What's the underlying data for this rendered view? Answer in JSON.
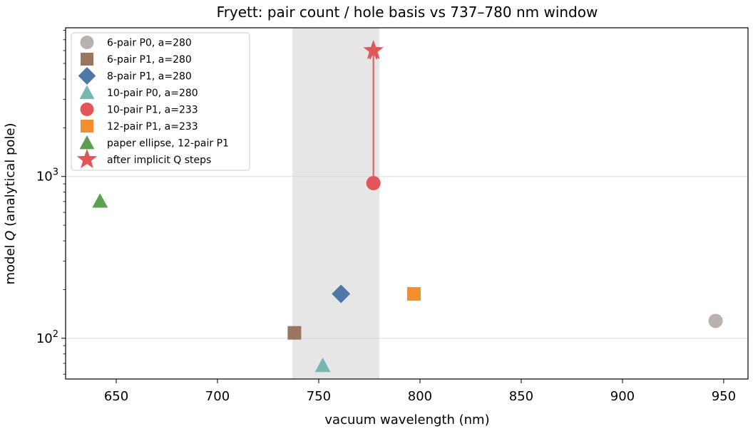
{
  "chart_data": {
    "type": "scatter",
    "title": "Fryett: pair count / hole basis vs 737–780 nm window",
    "xlabel": "vacuum wavelength (nm)",
    "ylabel_prefix": "model ",
    "ylabel_symbol": "Q",
    "ylabel_suffix": " (analytical pole)",
    "xlim": [
      625,
      962
    ],
    "ylim": [
      56,
      8300
    ],
    "y_scale": "log",
    "grid": "horizontal at y major ticks",
    "x_ticks": [
      650,
      700,
      750,
      800,
      850,
      900,
      950
    ],
    "y_ticks": [
      {
        "value": 100,
        "base": "10",
        "exp": "2"
      },
      {
        "value": 1000,
        "base": "10",
        "exp": "3"
      }
    ],
    "shaded_window": {
      "x_start": 737,
      "x_end": 780,
      "color": "#e6e6e6"
    },
    "legend_position": "upper-left",
    "series": [
      {
        "name": "6-pair P0, a=280",
        "marker": "circle",
        "color": "#bab0ac",
        "points": [
          {
            "x": 946,
            "y": 128
          }
        ]
      },
      {
        "name": "6-pair P1, a=280",
        "marker": "square",
        "color": "#9c755f",
        "points": [
          {
            "x": 738,
            "y": 108
          }
        ]
      },
      {
        "name": "8-pair P1, a=280",
        "marker": "diamond",
        "color": "#4e79a7",
        "points": [
          {
            "x": 761,
            "y": 188
          }
        ]
      },
      {
        "name": "10-pair P0, a=280",
        "marker": "triangle",
        "color": "#76b7b2",
        "points": [
          {
            "x": 752,
            "y": 68
          }
        ]
      },
      {
        "name": "10-pair P1, a=233",
        "marker": "circle",
        "color": "#e15759",
        "points": [
          {
            "x": 777,
            "y": 910
          }
        ]
      },
      {
        "name": "12-pair P1, a=233",
        "marker": "square",
        "color": "#f28e2b",
        "points": [
          {
            "x": 797,
            "y": 188
          }
        ]
      },
      {
        "name": "paper ellipse, 12-pair P1",
        "marker": "triangle",
        "color": "#59a14f",
        "points": [
          {
            "x": 642,
            "y": 705
          }
        ]
      },
      {
        "name": "after implicit Q steps",
        "marker": "star",
        "color": "#e15759",
        "points": [
          {
            "x": 777,
            "y": 6000
          }
        ]
      }
    ],
    "arrow": {
      "from": {
        "x": 777,
        "y": 910
      },
      "to": {
        "x": 777,
        "y": 6000
      },
      "color": "#e15759"
    }
  }
}
